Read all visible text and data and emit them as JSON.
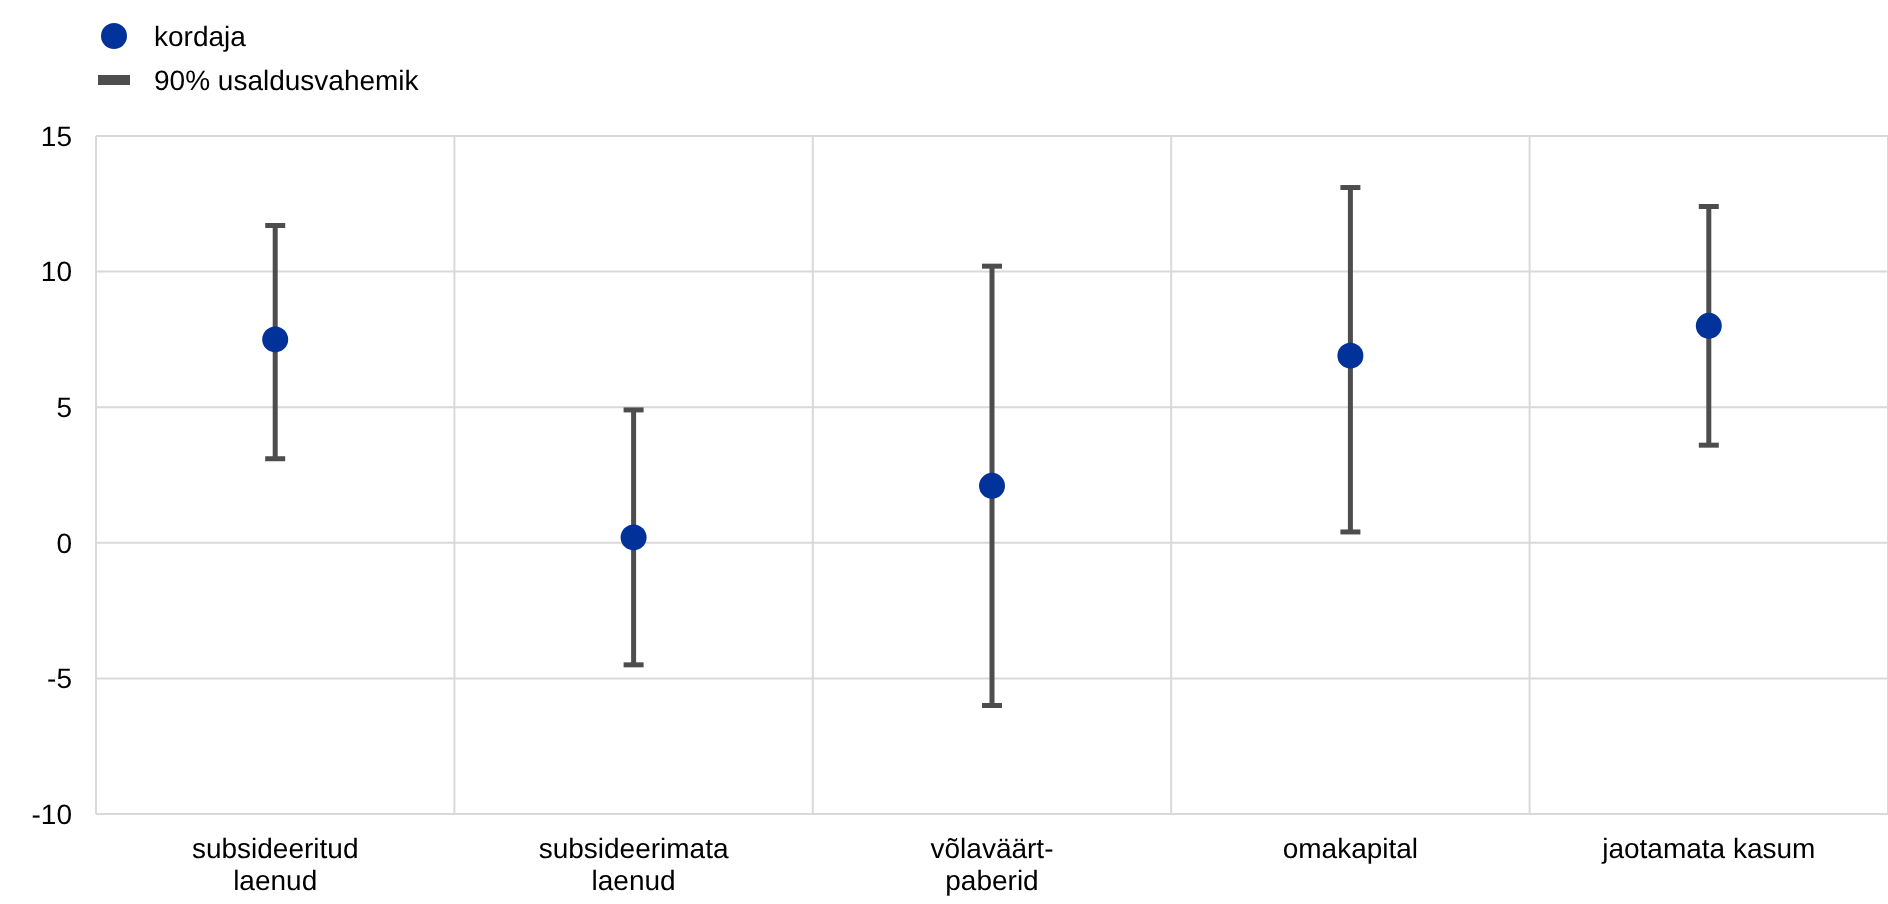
{
  "chart_data": {
    "type": "scatter",
    "categories": [
      "subsideeritud\nlaenud",
      "subsideerimata\nlaenud",
      "võlaväärt-\npaberid",
      "omakapital",
      "jaotamata kasum"
    ],
    "series": [
      {
        "name": "kordaja",
        "color": "#003299",
        "values": [
          7.5,
          0.2,
          2.1,
          6.9,
          8.0
        ],
        "errors": [
          [
            3.1,
            11.7
          ],
          [
            -4.5,
            4.9
          ],
          [
            -6.0,
            10.2
          ],
          [
            0.4,
            13.1
          ],
          [
            3.6,
            12.4
          ]
        ]
      }
    ],
    "annotations": [
      "90% usaldusvahemik"
    ],
    "ylim": [
      -10,
      15
    ],
    "yticks": [
      -10,
      -5,
      0,
      5,
      10,
      15
    ],
    "grid": true,
    "legend": "top left",
    "marker": "circle"
  }
}
